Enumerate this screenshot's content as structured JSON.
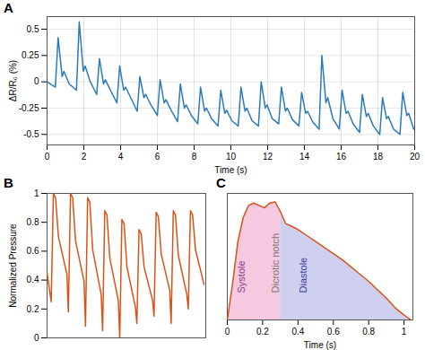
{
  "chart_data": [
    {
      "type": "line",
      "title": "A",
      "xlabel": "Time (s)",
      "ylabel": "ΔR/R₀ (%)",
      "color": "#2b7bba",
      "grid": true,
      "xlim": [
        0,
        20
      ],
      "ylim": [
        -0.6,
        0.62
      ],
      "xticks": [
        0,
        2,
        4,
        6,
        8,
        10,
        12,
        14,
        16,
        18,
        20
      ],
      "yticks": [
        -0.5,
        -0.25,
        0,
        0.25,
        0.5
      ],
      "x": [
        0,
        0.45,
        0.6,
        0.82,
        0.92,
        1.2,
        1.6,
        1.75,
        1.97,
        2.07,
        2.35,
        2.7,
        2.85,
        3.07,
        3.17,
        3.45,
        3.8,
        3.95,
        4.17,
        4.27,
        4.55,
        4.9,
        5.05,
        5.27,
        5.37,
        5.65,
        6.0,
        6.15,
        6.37,
        6.47,
        6.75,
        7.1,
        7.25,
        7.47,
        7.57,
        7.85,
        8.2,
        8.35,
        8.57,
        8.67,
        8.95,
        9.3,
        9.45,
        9.67,
        9.77,
        10.05,
        10.4,
        10.55,
        10.77,
        10.87,
        11.15,
        11.5,
        11.65,
        11.87,
        11.97,
        12.25,
        12.6,
        12.75,
        12.97,
        13.07,
        13.35,
        13.7,
        13.85,
        14.07,
        14.17,
        14.45,
        14.8,
        14.95,
        15.17,
        15.27,
        15.55,
        15.9,
        16.05,
        16.27,
        16.37,
        16.65,
        17.0,
        17.15,
        17.37,
        17.47,
        17.75,
        18.1,
        18.25,
        18.47,
        18.57,
        18.85,
        19.2,
        19.35,
        19.57,
        19.67,
        19.95
      ],
      "values": [
        0,
        -0.05,
        0.42,
        0.05,
        0.1,
        -0.02,
        -0.08,
        0.57,
        0.1,
        0.15,
        0.0,
        -0.12,
        0.22,
        -0.02,
        0.02,
        -0.08,
        -0.2,
        0.15,
        -0.08,
        -0.05,
        -0.15,
        -0.28,
        0.05,
        -0.15,
        -0.12,
        -0.22,
        -0.32,
        0.02,
        -0.2,
        -0.17,
        -0.27,
        -0.38,
        -0.02,
        -0.25,
        -0.22,
        -0.32,
        -0.4,
        -0.05,
        -0.28,
        -0.25,
        -0.35,
        -0.42,
        -0.08,
        -0.3,
        -0.27,
        -0.37,
        -0.42,
        -0.05,
        -0.28,
        -0.25,
        -0.37,
        -0.42,
        0.0,
        -0.25,
        -0.22,
        -0.35,
        -0.4,
        -0.05,
        -0.28,
        -0.25,
        -0.36,
        -0.42,
        -0.1,
        -0.3,
        -0.28,
        -0.38,
        -0.45,
        0.25,
        -0.2,
        -0.15,
        -0.35,
        -0.45,
        -0.08,
        -0.3,
        -0.28,
        -0.4,
        -0.48,
        -0.12,
        -0.33,
        -0.3,
        -0.42,
        -0.5,
        -0.15,
        -0.35,
        -0.33,
        -0.45,
        -0.5,
        -0.1,
        -0.32,
        -0.3,
        -0.45
      ]
    },
    {
      "type": "line",
      "title": "B",
      "ylabel": "Normalized Pressure",
      "color": "#d95319",
      "grid": false,
      "tick_labels": "y",
      "xlim": [
        0,
        8.8
      ],
      "ylim": [
        0,
        1
      ],
      "xticks": [],
      "yticks": [
        0,
        0.2,
        0.4,
        0.6,
        0.8,
        1
      ],
      "x": [
        0,
        0.23,
        0.35,
        0.47,
        0.63,
        1.1,
        1.18,
        1.3,
        1.42,
        1.58,
        2.05,
        2.13,
        2.25,
        2.37,
        2.53,
        3.0,
        3.08,
        3.2,
        3.32,
        3.48,
        3.95,
        4.03,
        4.15,
        4.27,
        4.43,
        4.9,
        4.98,
        5.1,
        5.22,
        5.38,
        5.85,
        5.93,
        6.05,
        6.17,
        6.33,
        6.8,
        6.88,
        7.0,
        7.12,
        7.28,
        7.75,
        7.83,
        7.95,
        8.07,
        8.23,
        8.7
      ],
      "values": [
        0.45,
        0.25,
        1,
        0.97,
        0.7,
        0.44,
        0.18,
        1,
        0.97,
        0.67,
        0.39,
        0.08,
        0.97,
        0.94,
        0.61,
        0.3,
        0.05,
        0.88,
        0.85,
        0.55,
        0.26,
        0,
        0.82,
        0.79,
        0.49,
        0.21,
        0.1,
        0.75,
        0.72,
        0.49,
        0.26,
        0.15,
        0.87,
        0.84,
        0.58,
        0.33,
        0.1,
        0.88,
        0.85,
        0.57,
        0.3,
        0.2,
        0.88,
        0.85,
        0.61,
        0.37
      ]
    },
    {
      "type": "line",
      "title": "C",
      "xlabel": "Time (s)",
      "color": "#d95319",
      "grid": false,
      "tick_labels": "x",
      "xlim": [
        0,
        1.05
      ],
      "ylim": [
        0,
        1.05
      ],
      "xticks": [
        0,
        0.2,
        0.4,
        0.6,
        0.8,
        1
      ],
      "yticks": [],
      "x": [
        0,
        0.03,
        0.06,
        0.09,
        0.12,
        0.15,
        0.18,
        0.21,
        0.24,
        0.27,
        0.3,
        0.33,
        0.36,
        0.4,
        0.45,
        0.5,
        0.55,
        0.6,
        0.65,
        0.7,
        0.75,
        0.8,
        0.85,
        0.9,
        0.95,
        1.0,
        1.04
      ],
      "values": [
        0,
        0.3,
        0.65,
        0.85,
        0.95,
        0.97,
        0.95,
        0.93,
        0.97,
        0.98,
        0.9,
        0.8,
        0.78,
        0.75,
        0.7,
        0.65,
        0.6,
        0.55,
        0.5,
        0.44,
        0.38,
        0.32,
        0.25,
        0.18,
        0.1,
        0.04,
        0
      ],
      "regions": [
        {
          "start": 0,
          "end": 0.3,
          "color": "#f6c9e0"
        },
        {
          "start": 0.3,
          "end": 1.04,
          "color": "#cfd0f0"
        }
      ],
      "annotations": [
        {
          "text": "Systole",
          "x": 0.1,
          "color": "#8a3d8f"
        },
        {
          "text": "Dicrotic notch",
          "x": 0.29,
          "color": "#777777"
        },
        {
          "text": "Diastole",
          "x": 0.45,
          "color": "#3c3c9c"
        }
      ]
    }
  ]
}
